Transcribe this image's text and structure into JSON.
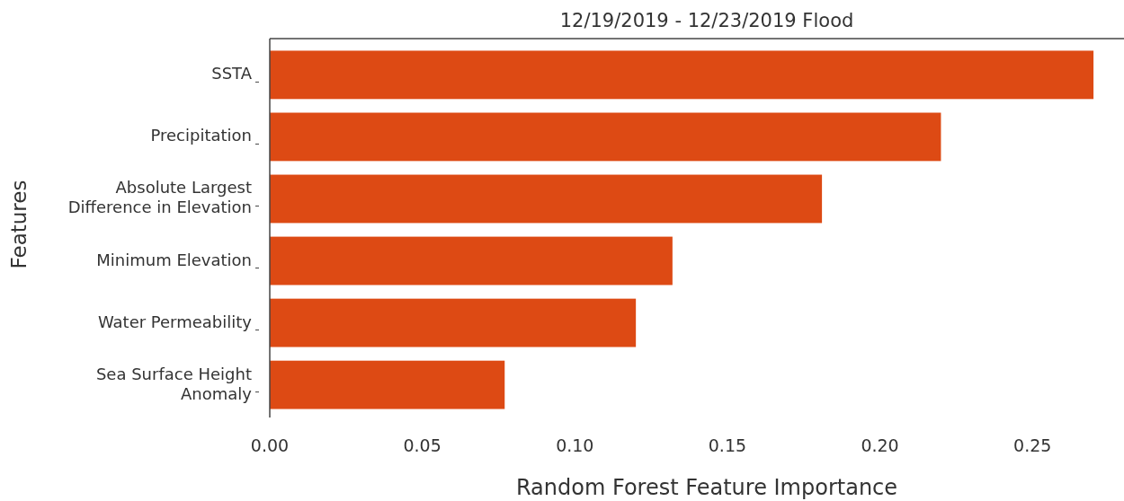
{
  "chart_data": {
    "type": "bar",
    "orientation": "horizontal",
    "title": "12/19/2019 - 12/23/2019 Flood",
    "xlabel": "Random Forest Feature Importance",
    "ylabel": "Features",
    "categories": [
      "SSTA",
      "Precipitation",
      "Absolute Largest\nDifference in Elevation",
      "Minimum Elevation",
      "Water Permeability",
      "Sea Surface Height\nAnomaly"
    ],
    "values": [
      0.27,
      0.22,
      0.181,
      0.132,
      0.12,
      0.077
    ],
    "color": "#dd4a14",
    "xlim": [
      0,
      0.28
    ],
    "xticks": [
      {
        "value": 0,
        "label": "0.00"
      },
      {
        "value": 0.05,
        "label": "0.05"
      },
      {
        "value": 0.1,
        "label": "0.10"
      },
      {
        "value": 0.15,
        "label": "0.15"
      },
      {
        "value": 0.2,
        "label": "0.20"
      },
      {
        "value": 0.25,
        "label": "0.25"
      }
    ],
    "grid": false
  }
}
